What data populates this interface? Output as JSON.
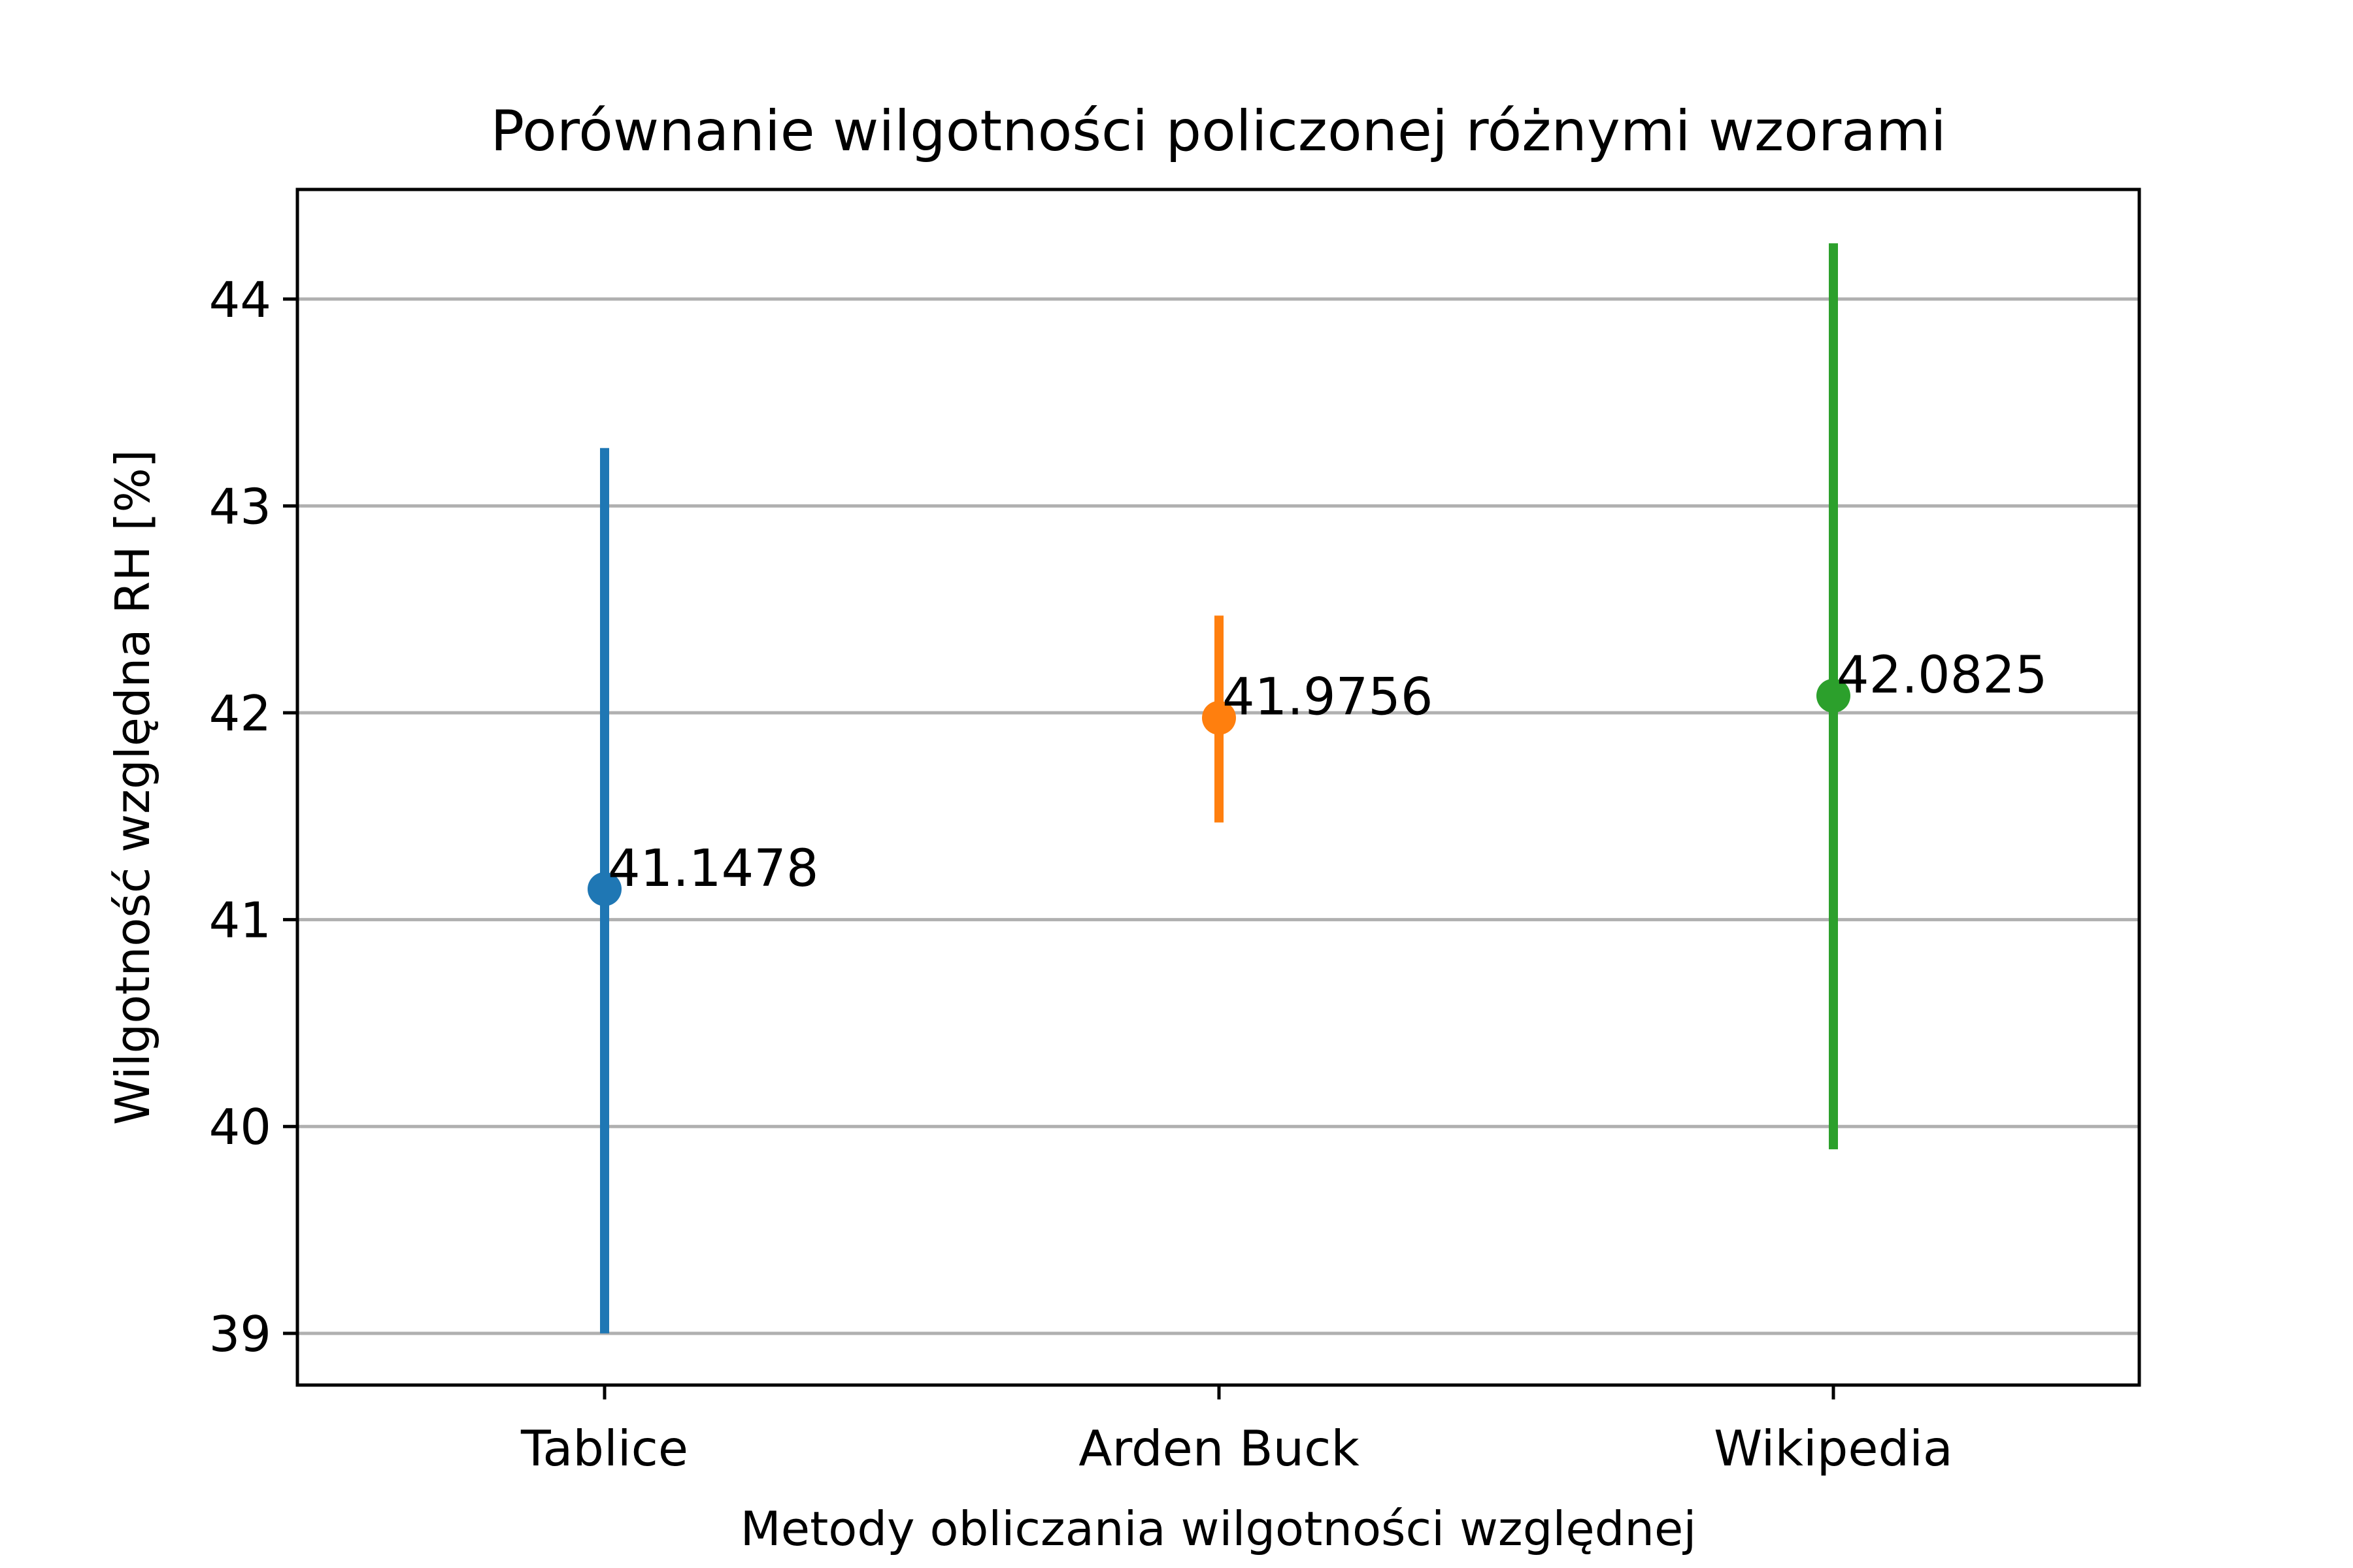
{
  "chart_data": {
    "type": "scatter",
    "title": "Porównanie wilgotności policzonej różnymi wzorami",
    "xlabel": "Metody obliczania wilgotności względnej",
    "ylabel": "Wilgotność względna RH [%]",
    "categories": [
      "Tablice",
      "Arden Buck",
      "Wikipedia"
    ],
    "ylim": [
      38.75,
      44.53
    ],
    "yticks": [
      39,
      40,
      41,
      42,
      43,
      44
    ],
    "grid": "horizontal",
    "points": [
      {
        "category": "Tablice",
        "value": 41.1478,
        "label": "41.1478",
        "err_low": 39.0,
        "err_high": 43.28,
        "color": "#1f77b4"
      },
      {
        "category": "Arden Buck",
        "value": 41.9756,
        "label": "41.9756",
        "err_low": 41.47,
        "err_high": 42.47,
        "color": "#ff7f0e"
      },
      {
        "category": "Wikipedia",
        "value": 42.0825,
        "label": "42.0825",
        "err_low": 39.89,
        "err_high": 44.27,
        "color": "#2ca02c"
      }
    ]
  }
}
